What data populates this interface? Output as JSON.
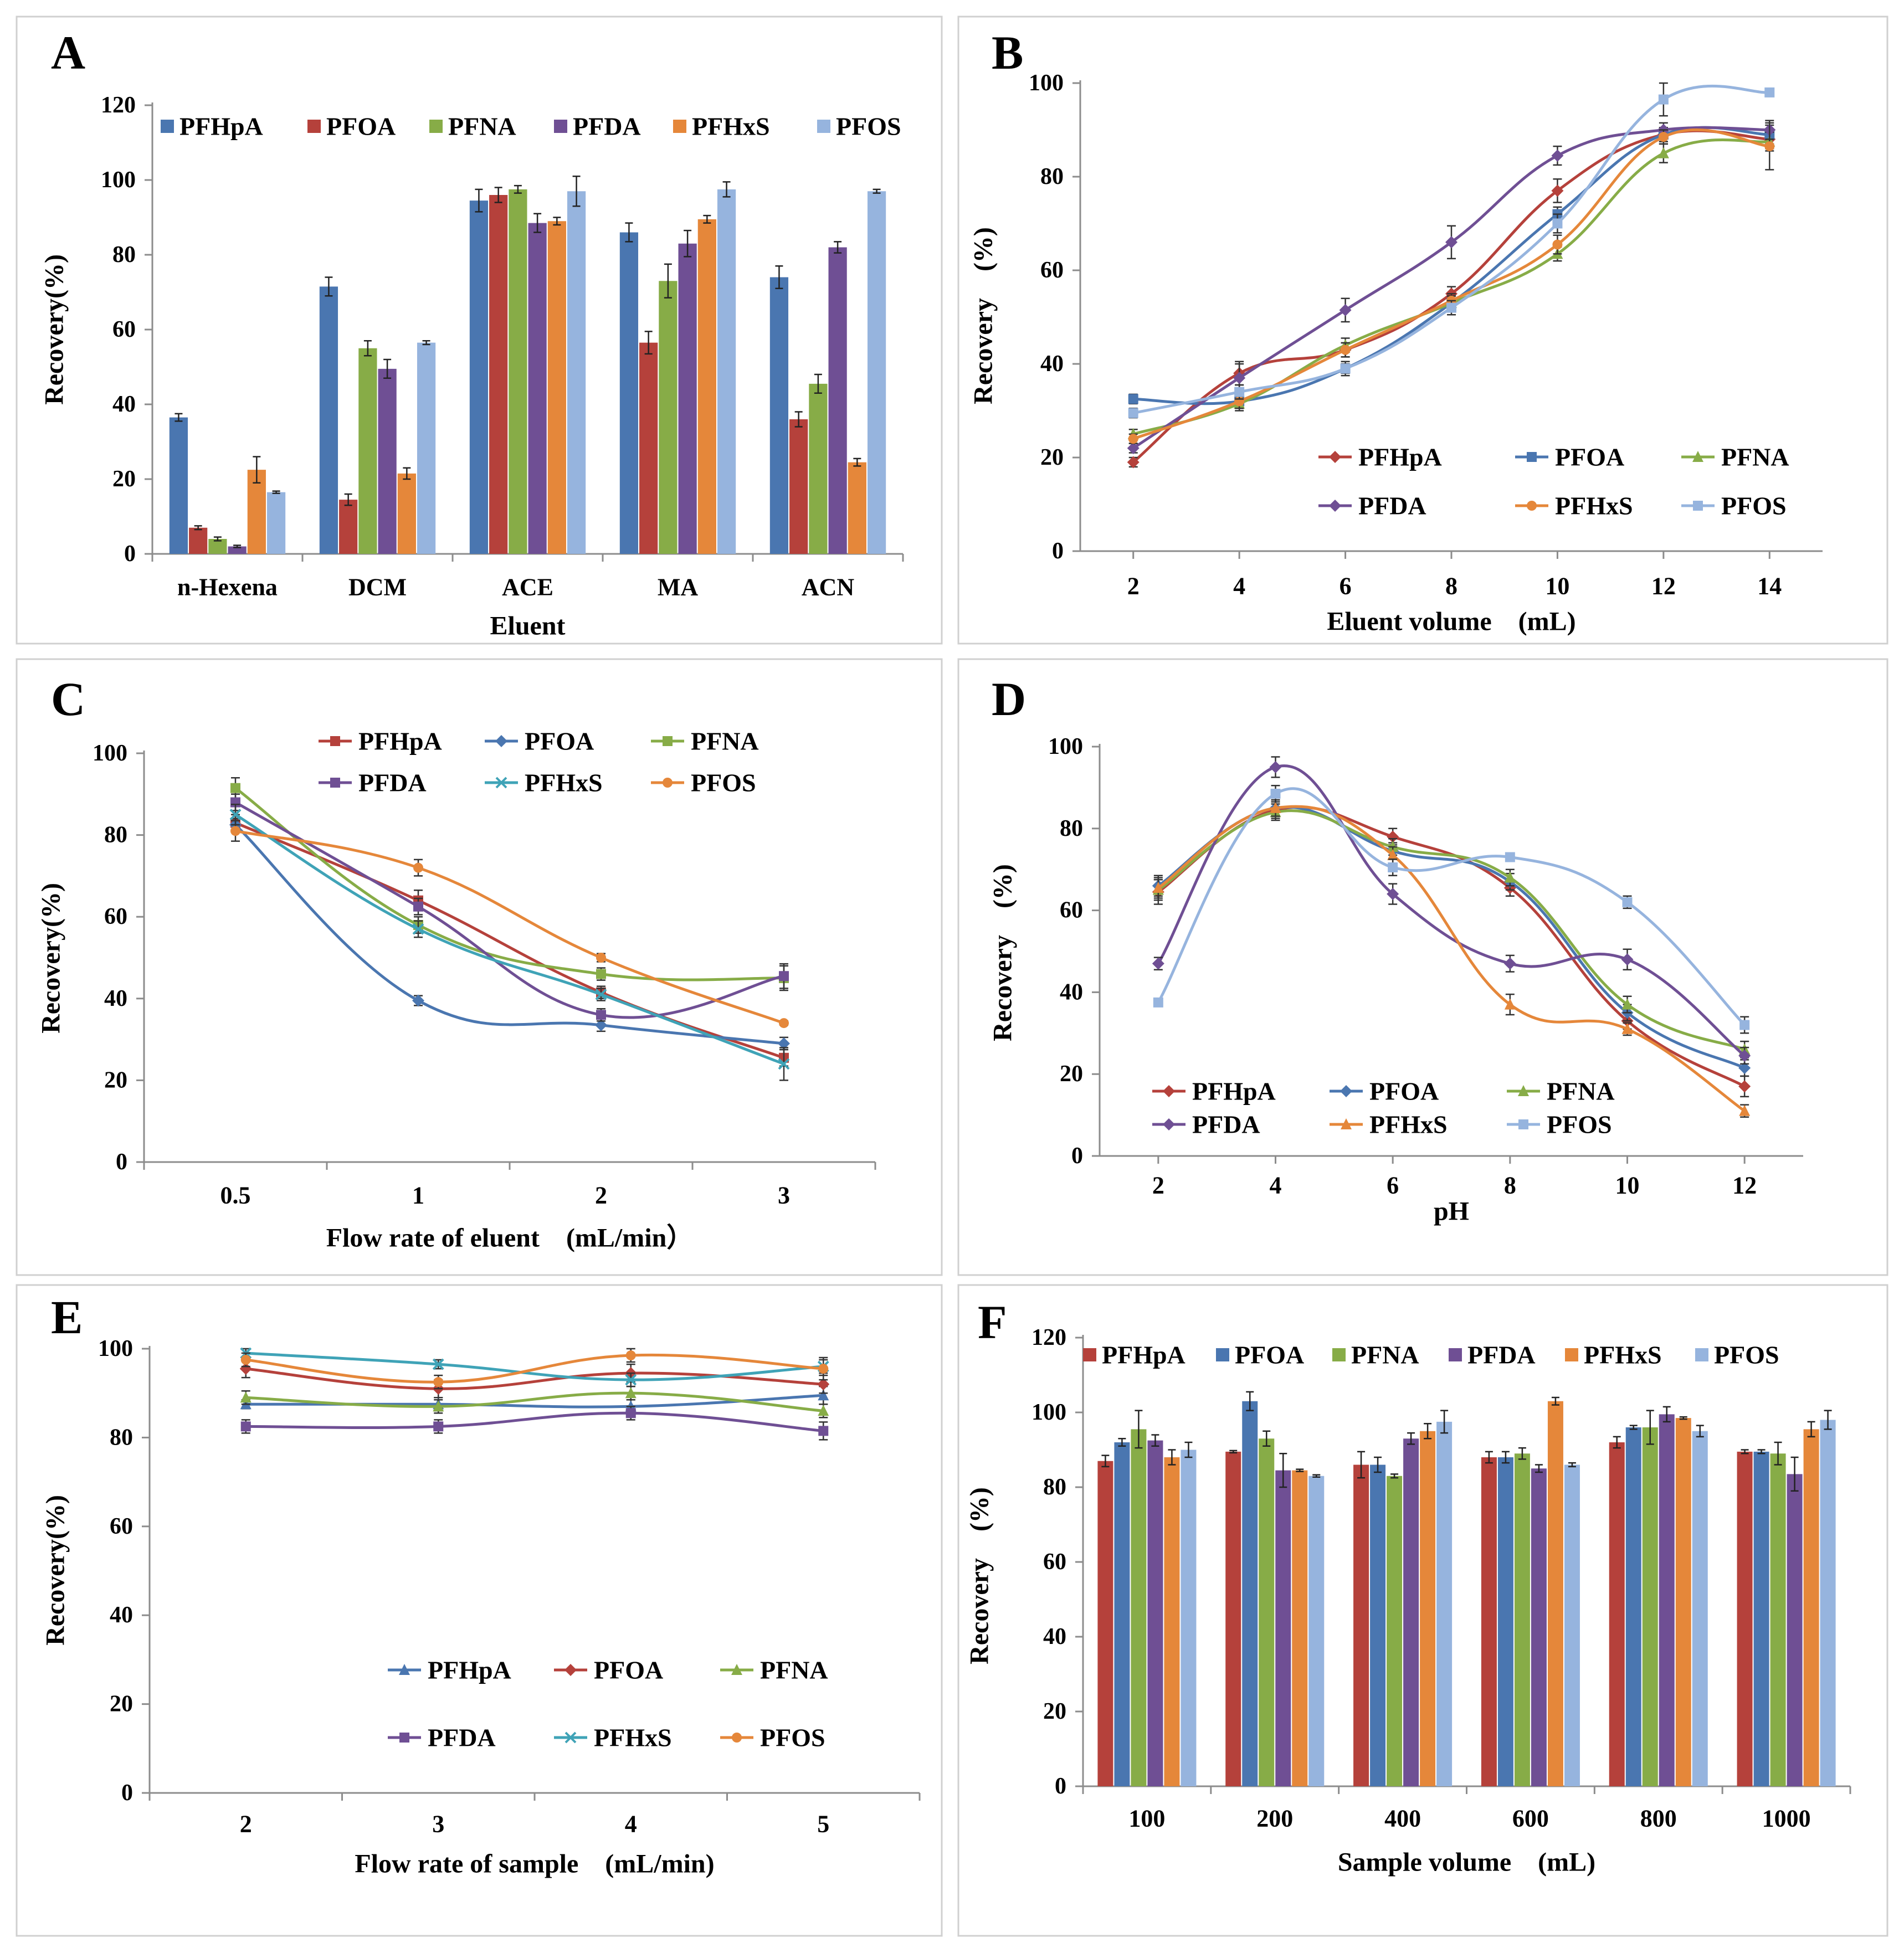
{
  "colors": {
    "PFHpA": "#4a76b0",
    "PFOA": "#b5413b",
    "PFNA": "#87ac47",
    "PFDA": "#6f4f94",
    "PFHxS": "#e5873a",
    "PFOS": "#96b4de",
    "red": "#b5413b",
    "blue": "#4a76b0",
    "green": "#87ac47",
    "purple": "#6f4f94",
    "orange": "#e5873a",
    "lightblue": "#96b4de",
    "teal": "#3fa3b7",
    "axis": "#8c8c8c",
    "text": "#000000",
    "panel_border": "#d0d0d0"
  },
  "chart_data": [
    {
      "panel": "A",
      "type": "bar",
      "letter": "A",
      "xlabel": "Eluent",
      "ylabel": "Recovery(%)",
      "ylim": [
        0,
        120
      ],
      "yticks": [
        0,
        20,
        40,
        60,
        80,
        100,
        120
      ],
      "categories": [
        "n-Hexena",
        "DCM",
        "ACE",
        "MA",
        "ACN"
      ],
      "series": [
        {
          "name": "PFHpA",
          "color": "PFHpA",
          "values": [
            36.5,
            71.5,
            94.5,
            86,
            74
          ],
          "err": [
            1,
            2.5,
            3,
            2.5,
            3
          ]
        },
        {
          "name": "PFOA",
          "color": "PFOA",
          "values": [
            7,
            14.5,
            96,
            56.5,
            36
          ],
          "err": [
            0.5,
            1.5,
            2,
            3,
            2
          ]
        },
        {
          "name": "PFNA",
          "color": "PFNA",
          "values": [
            4,
            55,
            97.5,
            73,
            45.5
          ],
          "err": [
            0.5,
            2,
            1,
            4.5,
            2.5
          ]
        },
        {
          "name": "PFDA",
          "color": "PFDA",
          "values": [
            2,
            49.5,
            88.5,
            83,
            82
          ],
          "err": [
            0.3,
            2.5,
            2.5,
            3.5,
            1.5
          ]
        },
        {
          "name": "PFHxS",
          "color": "PFHxS",
          "values": [
            22.5,
            21.5,
            89,
            89.5,
            24.5
          ],
          "err": [
            3.5,
            1.5,
            1,
            1,
            1
          ]
        },
        {
          "name": "PFOS",
          "color": "PFOS",
          "values": [
            16.5,
            56.5,
            97,
            97.5,
            97
          ],
          "err": [
            0.3,
            0.5,
            4,
            2,
            0.5
          ]
        }
      ]
    },
    {
      "panel": "B",
      "type": "line",
      "letter": "B",
      "xlabel": "Eluent volume　(mL)",
      "ylabel": "Recovery　(%)",
      "ylim": [
        0,
        100
      ],
      "yticks": [
        0,
        20,
        40,
        60,
        80,
        100
      ],
      "xlim": [
        1,
        15
      ],
      "x": [
        2,
        4,
        6,
        8,
        10,
        12,
        14
      ],
      "series": [
        {
          "name": "PFHpA",
          "color": "red",
          "marker": "diamond",
          "values": [
            19,
            38,
            43,
            55,
            77,
            89,
            88
          ],
          "err": [
            1,
            2.5,
            1.5,
            1.5,
            2.5,
            1.5,
            2
          ]
        },
        {
          "name": "PFOA",
          "color": "blue",
          "marker": "square",
          "values": [
            32.5,
            32,
            39,
            53,
            72,
            89,
            89
          ],
          "err": [
            1,
            1,
            1,
            1.5,
            1.5,
            1.5,
            2
          ]
        },
        {
          "name": "PFNA",
          "color": "green",
          "marker": "triangle",
          "values": [
            25,
            31.5,
            44,
            53,
            63.5,
            85,
            87.5
          ],
          "err": [
            1,
            1.5,
            1.5,
            1.5,
            1.5,
            2,
            2
          ]
        },
        {
          "name": "PFDA",
          "color": "purple",
          "marker": "diamond",
          "values": [
            22,
            37,
            51.5,
            66,
            84.5,
            90,
            90
          ],
          "err": [
            1,
            3,
            2.5,
            3.5,
            2,
            1.5,
            2
          ]
        },
        {
          "name": "PFHxS",
          "color": "orange",
          "marker": "circle",
          "values": [
            24,
            32,
            43,
            53.5,
            65.5,
            88.5,
            86.5
          ],
          "err": [
            1,
            1.5,
            1.5,
            1.5,
            2,
            1.5,
            5
          ]
        },
        {
          "name": "PFOS",
          "color": "lightblue",
          "marker": "square",
          "values": [
            29.5,
            34,
            39,
            52,
            70,
            96.5,
            98
          ],
          "err": [
            1,
            1.5,
            1.5,
            1.5,
            2,
            3.5,
            0.5
          ]
        }
      ]
    },
    {
      "panel": "C",
      "type": "line",
      "letter": "C",
      "xlabel": "Flow rate of eluent　(mL/min）",
      "ylabel": "Recovery(%)",
      "ylim": [
        0,
        100
      ],
      "yticks": [
        0,
        20,
        40,
        60,
        80,
        100
      ],
      "categories": [
        "0.5",
        "1",
        "2",
        "3"
      ],
      "series": [
        {
          "name": "PFHpA",
          "color": "red",
          "marker": "square",
          "values": [
            83,
            64,
            41.5,
            25.5
          ],
          "err": [
            2,
            2.5,
            1.5,
            2
          ]
        },
        {
          "name": "PFOA",
          "color": "blue",
          "marker": "diamond",
          "values": [
            82.5,
            39.5,
            33.5,
            29
          ],
          "err": [
            1.5,
            1.2,
            1.5,
            1.5
          ]
        },
        {
          "name": "PFNA",
          "color": "green",
          "marker": "square",
          "values": [
            91.5,
            58,
            46,
            45
          ],
          "err": [
            2.5,
            2,
            1.5,
            3
          ]
        },
        {
          "name": "PFDA",
          "color": "purple",
          "marker": "square",
          "values": [
            88,
            62.5,
            36,
            45.5
          ],
          "err": [
            2,
            2,
            1.5,
            3
          ]
        },
        {
          "name": "PFHxS",
          "color": "teal",
          "marker": "cross",
          "values": [
            85,
            57,
            41,
            24
          ],
          "err": [
            2.5,
            2,
            1.5,
            4
          ]
        },
        {
          "name": "PFOS",
          "color": "orange",
          "marker": "circle",
          "values": [
            81,
            72,
            50,
            34
          ],
          "err": [
            2.5,
            2,
            1,
            0.5
          ]
        }
      ]
    },
    {
      "panel": "D",
      "type": "line",
      "letter": "D",
      "xlabel": "pH",
      "ylabel": "Recovery　(%)",
      "ylim": [
        0,
        100
      ],
      "yticks": [
        0,
        20,
        40,
        60,
        80,
        100
      ],
      "xlim": [
        1,
        13
      ],
      "x": [
        2,
        4,
        6,
        8,
        10,
        12
      ],
      "series": [
        {
          "name": "PFHpA",
          "color": "red",
          "marker": "diamond",
          "values": [
            64.5,
            84.5,
            78,
            65.5,
            33,
            17
          ],
          "err": [
            3,
            2,
            2,
            2,
            2,
            2.5
          ]
        },
        {
          "name": "PFOA",
          "color": "blue",
          "marker": "diamond",
          "values": [
            66,
            85,
            74.5,
            67,
            35,
            21.5
          ],
          "err": [
            2.5,
            2,
            2,
            2,
            2,
            2
          ]
        },
        {
          "name": "PFNA",
          "color": "green",
          "marker": "triangle",
          "values": [
            65,
            84,
            75.5,
            68,
            37,
            26
          ],
          "err": [
            2.5,
            2,
            2,
            2,
            2,
            2
          ]
        },
        {
          "name": "PFDA",
          "color": "purple",
          "marker": "diamond",
          "values": [
            47,
            95,
            64,
            47,
            48,
            24.5
          ],
          "err": [
            1.5,
            2.5,
            2.5,
            2,
            2.5,
            2
          ]
        },
        {
          "name": "PFHxS",
          "color": "orange",
          "marker": "triangle",
          "values": [
            65.5,
            85,
            73.5,
            37,
            31,
            11
          ],
          "err": [
            2.5,
            2,
            2,
            2.5,
            1.5,
            1.5
          ]
        },
        {
          "name": "PFOS",
          "color": "lightblue",
          "marker": "square",
          "values": [
            37.5,
            88.5,
            70.5,
            73,
            62,
            32
          ],
          "err": [
            1,
            2,
            2,
            1,
            1.5,
            2
          ]
        }
      ]
    },
    {
      "panel": "E",
      "type": "line",
      "letter": "E",
      "xlabel": "Flow rate of sample　(mL/min)",
      "ylabel": "Recovery(%)",
      "ylim": [
        0,
        100
      ],
      "yticks": [
        0,
        20,
        40,
        60,
        80,
        100
      ],
      "categories": [
        "2",
        "3",
        "4",
        "5"
      ],
      "series": [
        {
          "name": "PFHpA",
          "color": "blue",
          "marker": "triangle",
          "values": [
            87.5,
            87.5,
            87,
            89.5
          ],
          "err": [
            1,
            1.5,
            1.5,
            2
          ]
        },
        {
          "name": "PFOA",
          "color": "red",
          "marker": "diamond",
          "values": [
            95.5,
            91,
            94.5,
            92
          ],
          "err": [
            2,
            2,
            2,
            2
          ]
        },
        {
          "name": "PFNA",
          "color": "green",
          "marker": "triangle",
          "values": [
            89,
            87,
            90,
            86
          ],
          "err": [
            1.5,
            1.5,
            1.5,
            1.5
          ]
        },
        {
          "name": "PFDA",
          "color": "purple",
          "marker": "square",
          "values": [
            82.5,
            82.5,
            85.5,
            81.5
          ],
          "err": [
            1.5,
            1.5,
            1.5,
            2
          ]
        },
        {
          "name": "PFHxS",
          "color": "teal",
          "marker": "cross",
          "values": [
            99,
            96.5,
            93,
            96
          ],
          "err": [
            1,
            1,
            1.5,
            1.5
          ]
        },
        {
          "name": "PFOS",
          "color": "orange",
          "marker": "circle",
          "values": [
            97.5,
            92.5,
            98.5,
            95.5
          ],
          "err": [
            1.5,
            1.5,
            1.5,
            2.5
          ]
        }
      ]
    },
    {
      "panel": "F",
      "type": "bar",
      "letter": "F",
      "xlabel": "Sample volume　(mL)",
      "ylabel": "Recovery　(%)",
      "ylim": [
        0,
        120
      ],
      "yticks": [
        0,
        20,
        40,
        60,
        80,
        100,
        120
      ],
      "categories": [
        "100",
        "200",
        "400",
        "600",
        "800",
        "1000"
      ],
      "series": [
        {
          "name": "PFHpA",
          "color": "red",
          "values": [
            87,
            89.5,
            86,
            88,
            92,
            89.5
          ],
          "err": [
            1.5,
            0.3,
            3.5,
            1.5,
            1.5,
            0.5
          ]
        },
        {
          "name": "PFOA",
          "color": "blue",
          "values": [
            92,
            103,
            86,
            88,
            96,
            89.5
          ],
          "err": [
            1,
            2.5,
            2,
            1.5,
            0.5,
            0.5
          ]
        },
        {
          "name": "PFNA",
          "color": "green",
          "values": [
            95.5,
            93,
            83,
            89,
            96,
            89
          ],
          "err": [
            5,
            2,
            0.5,
            1.5,
            4.5,
            3
          ]
        },
        {
          "name": "PFDA",
          "color": "purple",
          "values": [
            92.5,
            84.5,
            93,
            85,
            99.5,
            83.5
          ],
          "err": [
            1.5,
            4.5,
            1.5,
            1,
            2,
            4.5
          ]
        },
        {
          "name": "PFHxS",
          "color": "orange",
          "values": [
            88,
            84.5,
            95,
            103,
            98.5,
            95.5
          ],
          "err": [
            2,
            0.3,
            2,
            1,
            0.3,
            2
          ]
        },
        {
          "name": "PFOS",
          "color": "lightblue",
          "values": [
            90,
            83,
            97.5,
            86,
            95,
            98
          ],
          "err": [
            2,
            0.3,
            3,
            0.5,
            1.5,
            2.5
          ]
        }
      ]
    }
  ]
}
